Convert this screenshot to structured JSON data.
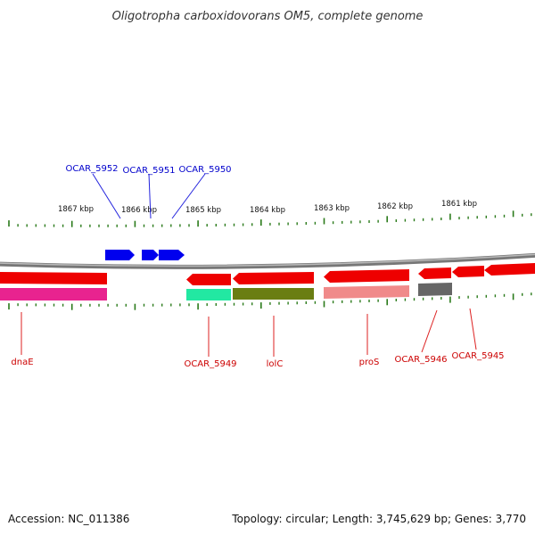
{
  "title": "Oligotropha carboxidovorans OM5, complete genome",
  "footer": {
    "accession": "Accession: NC_011386",
    "summary": "Topology: circular; Length: 3,745,629 bp; Genes: 3,770"
  },
  "colors": {
    "forward": "#0000ee",
    "reverse": "#ee0000",
    "backbone": "#888888",
    "ticks": "#2a7a1a"
  },
  "scale_labels": [
    "1867 kbp",
    "1866 kbp",
    "1865 kbp",
    "1864 kbp",
    "1863 kbp",
    "1862 kbp",
    "1861 kbp"
  ],
  "forward_genes": [
    {
      "name": "OCAR_5952"
    },
    {
      "name": "OCAR_5951"
    },
    {
      "name": "OCAR_5950"
    }
  ],
  "reverse_labels": [
    {
      "name": "dnaE"
    },
    {
      "name": "OCAR_5949"
    },
    {
      "name": "lolC"
    },
    {
      "name": "proS"
    },
    {
      "name": "OCAR_5946"
    },
    {
      "name": "OCAR_5945"
    }
  ]
}
